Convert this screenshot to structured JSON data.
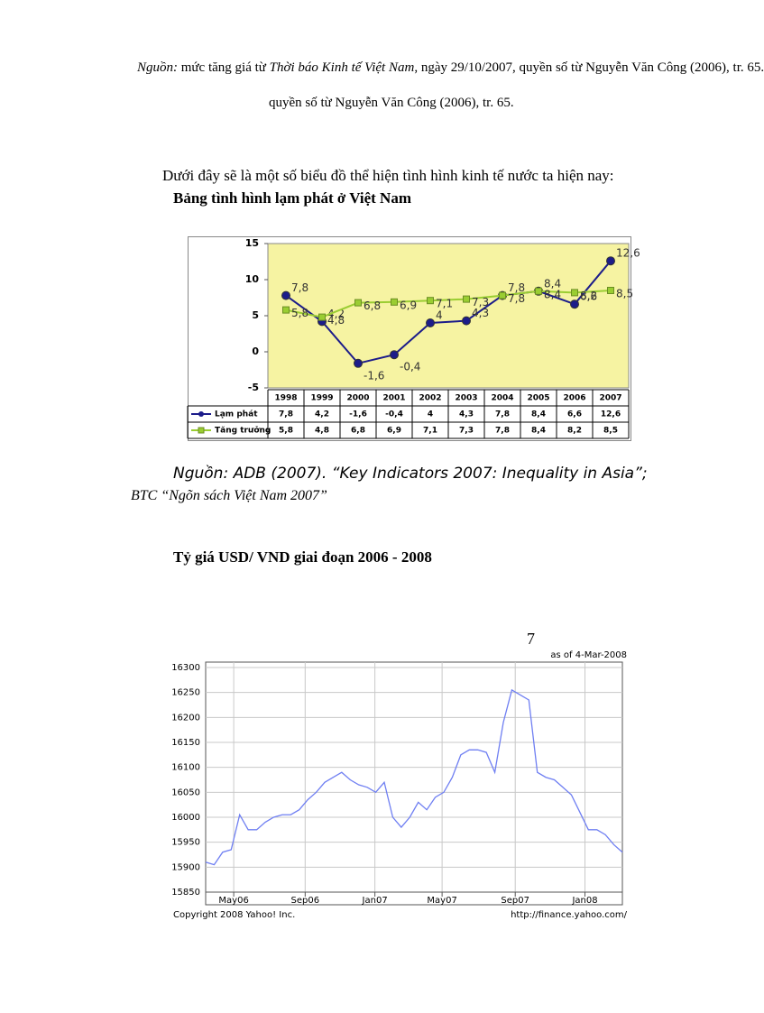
{
  "source_note": {
    "label": "Nguồn:",
    "text1": " mức tăng giá từ ",
    "publication": "Thời báo Kinh tế Việt Nam",
    "text2": ", ngày 29/10/2007, quyền số từ Nguyễn Văn Công (2006), tr. 65."
  },
  "source_repeat": "quyền số từ Nguyễn Văn Công (2006), tr. 65.",
  "intro": "Dưới đây sẽ là một số biểu đồ thể hiện tình hình kinh tế nước ta hiện nay:",
  "chart_data": [
    {
      "type": "line",
      "title": "Bảng tình hình lạm phát ở Việt Nam",
      "categories": [
        "1998",
        "1999",
        "2000",
        "2001",
        "2002",
        "2003",
        "2004",
        "2005",
        "2006",
        "2007"
      ],
      "series": [
        {
          "name": "Lạm phát",
          "color": "#1c1c8a",
          "marker": "circle",
          "values": [
            7.8,
            4.2,
            -1.6,
            -0.4,
            4,
            4.3,
            7.8,
            8.4,
            6.6,
            12.6
          ],
          "value_labels": [
            "7,8",
            "4,2",
            "-1,6",
            "-0,4",
            "4",
            "4,3",
            "7,8",
            "8,4",
            "6,6",
            "12,6"
          ]
        },
        {
          "name": "Tăng trưởng",
          "color": "#9acd32",
          "marker": "square",
          "values": [
            5.8,
            4.8,
            6.8,
            6.9,
            7.1,
            7.3,
            7.8,
            8.4,
            8.2,
            8.5
          ],
          "value_labels": [
            "5,8",
            "4,8",
            "6,8",
            "6,9",
            "7,1",
            "7,3",
            "7,8",
            "8,4",
            "8,2",
            "8,5"
          ]
        }
      ],
      "ylim": [
        -5,
        15
      ],
      "yticks": [
        -5,
        0,
        5,
        10,
        15
      ],
      "grid": false,
      "data_table": true,
      "plot_background": "#f6f3a2"
    },
    {
      "type": "line",
      "title": "Tỷ giá USD/ VND giai đoạn 2006 - 2008",
      "annotation": "as of 4-Mar-2008",
      "credits": [
        "Copyright 2008 Yahoo! Inc.",
        "http://finance.yahoo.com/"
      ],
      "color": "#6f7ff2",
      "values": [
        15910,
        15905,
        15930,
        15935,
        16005,
        15975,
        15975,
        15990,
        16000,
        16005,
        16005,
        16015,
        16035,
        16050,
        16070,
        16080,
        16090,
        16075,
        16065,
        16060,
        16050,
        16070,
        16000,
        15980,
        16000,
        16030,
        16015,
        16040,
        16050,
        16080,
        16125,
        16135,
        16135,
        16130,
        16090,
        16190,
        16255,
        16245,
        16235,
        16090,
        16080,
        16075,
        16060,
        16045,
        16010,
        15975,
        15975,
        15965,
        15945,
        15930
      ],
      "xlim": [
        0,
        49
      ],
      "xticks": [
        {
          "value": 3.3,
          "label": "May06"
        },
        {
          "value": 11.7,
          "label": "Sep06"
        },
        {
          "value": 19.9,
          "label": "Jan07"
        },
        {
          "value": 27.8,
          "label": "May07"
        },
        {
          "value": 36.4,
          "label": "Sep07"
        },
        {
          "value": 44.6,
          "label": "Jan08"
        }
      ],
      "ylim": [
        15850,
        16300
      ],
      "yticks": [
        15850,
        15900,
        15950,
        16000,
        16050,
        16100,
        16150,
        16200,
        16250,
        16300
      ],
      "grid": true
    }
  ],
  "chart1_source": [
    "Nguồn: ADB (2007). “Key Indicators 2007: Inequality in Asia”;",
    "BTC “Ngõn sách Việt Nam 2007”"
  ],
  "page_number": 7
}
